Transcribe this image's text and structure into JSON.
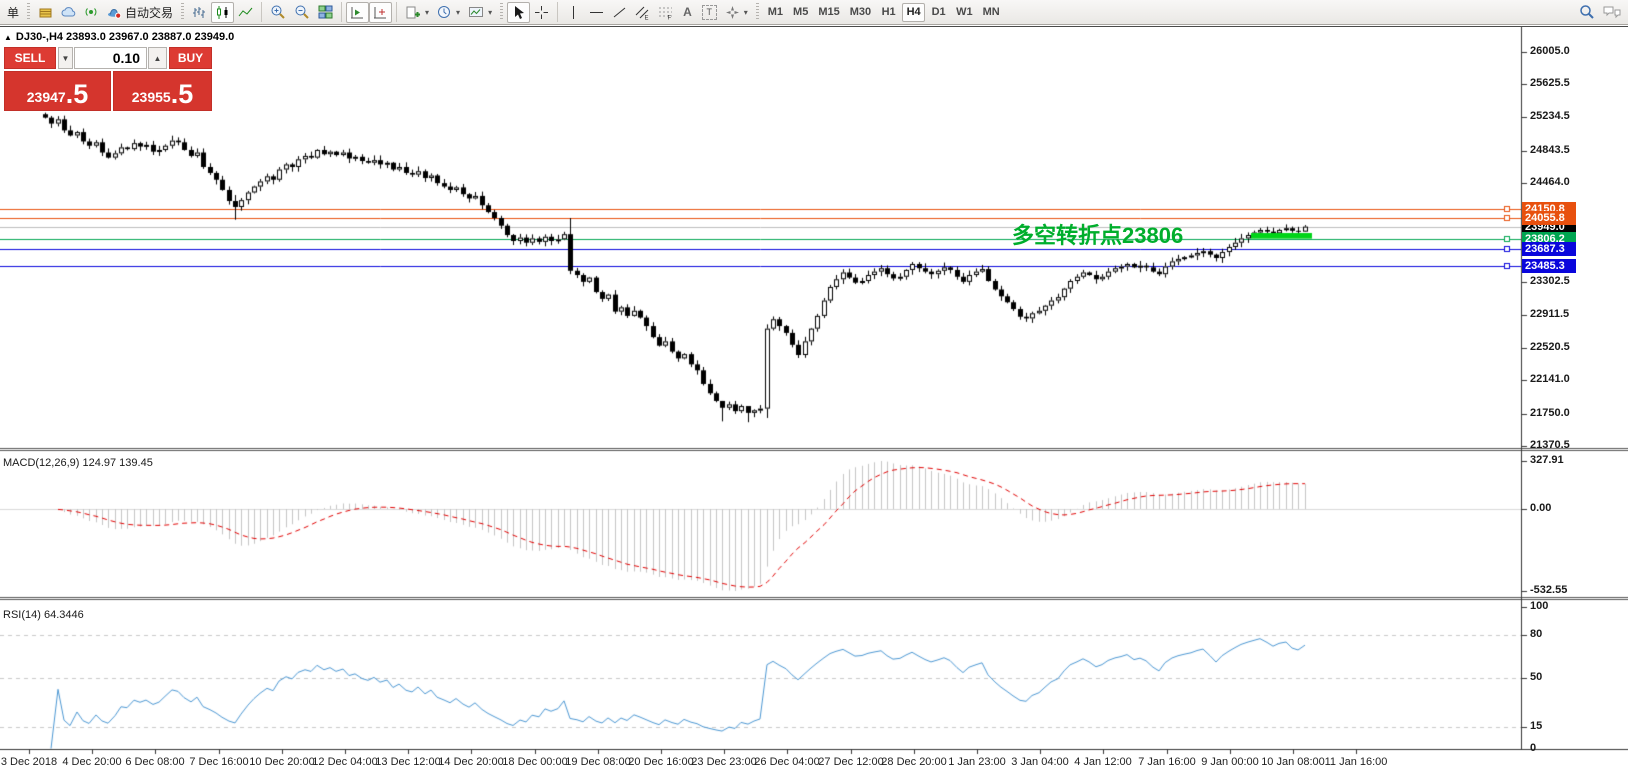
{
  "toolbar": {
    "new_order_label": "单",
    "autotrade_label": "自动交易",
    "timeframes": [
      "M1",
      "M5",
      "M15",
      "M30",
      "H1",
      "H4",
      "D1",
      "W1",
      "MN"
    ],
    "active_timeframe": "H4"
  },
  "chart": {
    "title": "DJ30-,H4 23893.0 23967.0 23887.0 23949.0",
    "annotation": {
      "text": "多空转折点23806",
      "color": "#00ae2c"
    }
  },
  "trade_panel": {
    "sell_label": "SELL",
    "buy_label": "BUY",
    "volume": "0.10",
    "sell_price_main": "23947",
    "sell_price_frac": ".5",
    "buy_price_main": "23955",
    "buy_price_frac": ".5"
  },
  "indicators": {
    "macd_label": "MACD(12,26,9) 124.97 139.45",
    "rsi_label": "RSI(14) 64.3446"
  },
  "chart_data": {
    "type": "candlestick",
    "symbol": "DJ30-",
    "timeframe": "H4",
    "last_bar": {
      "open": 23893.0,
      "high": 23967.0,
      "low": 23887.0,
      "close": 23949.0
    },
    "ylim": [
      21370.5,
      26005.0
    ],
    "price_ticks": [
      26005.0,
      25625.5,
      25234.5,
      24843.5,
      24464.0,
      23302.5,
      22911.5,
      22520.5,
      22141.0,
      21750.0,
      21370.5
    ],
    "closes": [
      25230,
      25160,
      25210,
      25080,
      25020,
      25060,
      24950,
      24900,
      24940,
      24820,
      24760,
      24810,
      24880,
      24860,
      24930,
      24890,
      24910,
      24830,
      24850,
      24900,
      24960,
      24940,
      24850,
      24780,
      24820,
      24650,
      24580,
      24500,
      24380,
      24250,
      24180,
      24260,
      24350,
      24420,
      24480,
      24540,
      24500,
      24620,
      24680,
      24650,
      24740,
      24780,
      24760,
      24850,
      24800,
      24830,
      24790,
      24820,
      24750,
      24770,
      24720,
      24700,
      24730,
      24680,
      24700,
      24620,
      24650,
      24580,
      24560,
      24600,
      24520,
      24550,
      24460,
      24420,
      24380,
      24410,
      24330,
      24280,
      24310,
      24200,
      24120,
      24050,
      23960,
      23850,
      23780,
      23820,
      23760,
      23810,
      23770,
      23830,
      23780,
      23800,
      23860,
      23430,
      23380,
      23300,
      23350,
      23180,
      23100,
      23150,
      22950,
      23000,
      22900,
      22960,
      22880,
      22780,
      22650,
      22550,
      22600,
      22480,
      22400,
      22450,
      22330,
      22260,
      22100,
      21990,
      21900,
      21820,
      21860,
      21780,
      21840,
      21760,
      21790,
      21810,
      22750,
      22860,
      22780,
      22700,
      22560,
      22440,
      22600,
      22750,
      22900,
      23080,
      23240,
      23330,
      23410,
      23350,
      23290,
      23310,
      23380,
      23420,
      23460,
      23390,
      23340,
      23360,
      23440,
      23510,
      23460,
      23420,
      23390,
      23430,
      23470,
      23440,
      23360,
      23300,
      23380,
      23420,
      23450,
      23310,
      23210,
      23130,
      23060,
      22980,
      22890,
      22870,
      22930,
      22960,
      23020,
      23080,
      23120,
      23220,
      23310,
      23360,
      23410,
      23380,
      23330,
      23360,
      23420,
      23460,
      23480,
      23510,
      23470,
      23490,
      23470,
      23420,
      23390,
      23480,
      23540,
      23570,
      23590,
      23610,
      23640,
      23660,
      23620,
      23580,
      23650,
      23710,
      23760,
      23810,
      23850,
      23880,
      23910,
      23890,
      23870,
      23910,
      23930,
      23900,
      23890,
      23949
    ],
    "wick_overrides": {
      "30": [
        24320,
        24030
      ],
      "83": [
        24050,
        23390
      ],
      "107": [
        21900,
        21660
      ],
      "111": [
        21830,
        21650
      ],
      "114": [
        22800,
        21700
      ],
      "199": [
        23967,
        23887
      ]
    },
    "hlines": [
      {
        "price": 24150.8,
        "label": "24150.8",
        "color": "#e8500e"
      },
      {
        "price": 24055.8,
        "label": "24055.8",
        "color": "#e8500e"
      },
      {
        "price": 23806.2,
        "label": "23806.2",
        "color": "#00a651"
      },
      {
        "price": 23687.3,
        "label": "23687.3",
        "color": "#0a06dc"
      },
      {
        "price": 23485.3,
        "label": "23485.3",
        "color": "#0a06dc"
      }
    ],
    "current_price": {
      "price": 23949.0,
      "label": "23949.0",
      "line_color": "#bdbdbd",
      "tag_bg": "#000000"
    },
    "highlight_rect": {
      "bar_start": 191,
      "bar_end": 200,
      "price_top": 23874,
      "price_bottom": 23808,
      "color": "#00d418"
    },
    "time_labels": [
      "3 Dec 2018",
      "4 Dec 20:00",
      "6 Dec 08:00",
      "7 Dec 16:00",
      "10 Dec 20:00",
      "12 Dec 04:00",
      "13 Dec 12:00",
      "14 Dec 20:00",
      "18 Dec 00:00",
      "19 Dec 08:00",
      "20 Dec 16:00",
      "23 Dec 23:00",
      "26 Dec 04:00",
      "27 Dec 12:00",
      "28 Dec 20:00",
      "1 Jan 23:00",
      "3 Jan 04:00",
      "4 Jan 12:00",
      "7 Jan 16:00",
      "9 Jan 00:00",
      "10 Jan 08:00",
      "11 Jan 16:00"
    ],
    "macd": {
      "params": [
        12,
        26,
        9
      ],
      "last_main": 124.97,
      "last_signal": 139.45,
      "axis_labels": [
        "327.91",
        "0.00",
        "-532.55"
      ],
      "histogram_color": "#c4c4c4",
      "signal_color": "#e00000"
    },
    "rsi": {
      "period": 14,
      "last": 64.3446,
      "axis_labels": [
        100,
        80,
        50,
        15,
        0
      ],
      "levels": [
        80,
        50,
        15
      ],
      "line_color": "#4a96d2"
    }
  }
}
